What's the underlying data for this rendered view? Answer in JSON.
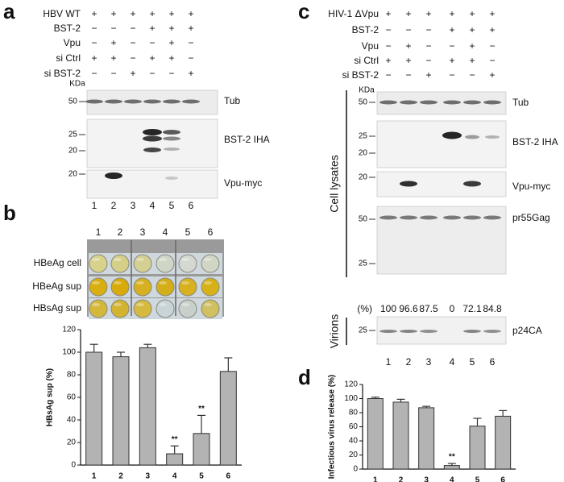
{
  "panel_labels": [
    "a",
    "b",
    "c",
    "d"
  ],
  "panel_a": {
    "conditions": [
      {
        "label": "HBV WT",
        "signs": [
          "+",
          "+",
          "+",
          "+",
          "+",
          "+"
        ]
      },
      {
        "label": "BST-2",
        "signs": [
          "−",
          "−",
          "−",
          "+",
          "+",
          "+"
        ]
      },
      {
        "label": "Vpu",
        "signs": [
          "−",
          "+",
          "−",
          "−",
          "+",
          "−"
        ]
      },
      {
        "label": "si Ctrl",
        "signs": [
          "+",
          "+",
          "−",
          "+",
          "+",
          "−"
        ]
      },
      {
        "label": "si BST-2",
        "signs": [
          "−",
          "−",
          "+",
          "−",
          "−",
          "+"
        ]
      }
    ],
    "kda": "KDa",
    "blots": [
      {
        "label": "Tub",
        "markers": [
          50
        ]
      },
      {
        "label": "BST-2 IHA",
        "markers": [
          25,
          20
        ]
      },
      {
        "label": "Vpu-myc",
        "markers": [
          20
        ]
      }
    ],
    "lanes": [
      "1",
      "2",
      "3",
      "4",
      "5",
      "6"
    ]
  },
  "panel_b": {
    "columns": [
      "1",
      "2",
      "3",
      "4",
      "5",
      "6"
    ],
    "rows": [
      "HBeAg cell",
      "HBeAg sup",
      "HBsAg sup"
    ]
  },
  "panel_c": {
    "conditions": [
      {
        "label": "HIV-1 ΔVpu",
        "signs": [
          "+",
          "+",
          "+",
          "+",
          "+",
          "+"
        ]
      },
      {
        "label": "BST-2",
        "signs": [
          "−",
          "−",
          "−",
          "+",
          "+",
          "+"
        ]
      },
      {
        "label": "Vpu",
        "signs": [
          "−",
          "+",
          "−",
          "−",
          "+",
          "−"
        ]
      },
      {
        "label": "si Ctrl",
        "signs": [
          "+",
          "+",
          "−",
          "+",
          "+",
          "−"
        ]
      },
      {
        "label": "si BST-2",
        "signs": [
          "−",
          "−",
          "+",
          "−",
          "−",
          "+"
        ]
      }
    ],
    "kda": "KDa",
    "blots": [
      {
        "label": "Tub",
        "markers": [
          50
        ]
      },
      {
        "label": "BST-2 IHA",
        "markers": [
          25,
          20
        ]
      },
      {
        "label": "Vpu-myc",
        "markers": [
          20
        ]
      },
      {
        "label": "pr55Gag",
        "markers": [
          50,
          25
        ]
      },
      {
        "label": "p24CA",
        "markers": [
          25
        ]
      }
    ],
    "percent_label": "(%)",
    "percent": [
      100,
      96.6,
      87.5,
      0,
      72.1,
      84.8
    ],
    "group_labels": [
      "Cell lysates",
      "Virions"
    ],
    "lanes": [
      "1",
      "2",
      "3",
      "4",
      "5",
      "6"
    ]
  },
  "chart_data": [
    {
      "type": "bar",
      "ylabel": "HBsAg sup (%)",
      "categories": [
        "1",
        "2",
        "3",
        "4",
        "5",
        "6"
      ],
      "values": [
        100,
        96,
        104,
        10,
        28,
        83
      ],
      "errors": [
        7,
        4,
        3,
        7,
        16,
        12
      ],
      "significance": [
        null,
        null,
        null,
        "**",
        "**",
        null
      ],
      "color": "#b3b3b3",
      "ylim": [
        0,
        120
      ],
      "yticks": [
        0,
        20,
        40,
        60,
        80,
        100,
        120
      ]
    },
    {
      "type": "bar",
      "ylabel": "Infectious virus release (%)",
      "categories": [
        "1",
        "2",
        "3",
        "4",
        "5",
        "6"
      ],
      "values": [
        100,
        95,
        87,
        5,
        61,
        75
      ],
      "errors": [
        2,
        4,
        2,
        3,
        11,
        8
      ],
      "significance": [
        null,
        null,
        null,
        "**",
        null,
        null
      ],
      "color": "#b3b3b3",
      "ylim": [
        0,
        120
      ],
      "yticks": [
        0,
        20,
        40,
        60,
        80,
        100,
        120
      ]
    }
  ]
}
